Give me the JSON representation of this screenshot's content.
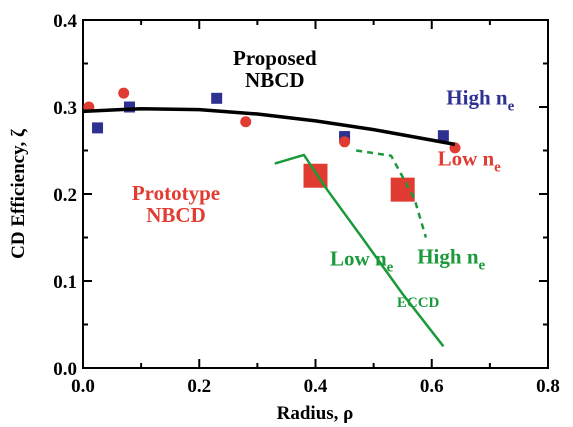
{
  "chart_data": {
    "type": "scatter",
    "xlabel": "Radius, ρ",
    "ylabel": "CD Efficiency, ζ",
    "xlim": [
      0.0,
      0.8
    ],
    "ylim": [
      0.0,
      0.4
    ],
    "xticks": [
      0.0,
      0.2,
      0.4,
      0.6,
      0.8
    ],
    "yticks": [
      0.0,
      0.1,
      0.2,
      0.3,
      0.4
    ],
    "xtick_labels": [
      "0.0",
      "0.2",
      "0.4",
      "0.6",
      "0.8"
    ],
    "ytick_labels": [
      "0.0",
      "0.1",
      "0.2",
      "0.3",
      "0.4"
    ],
    "grid": false,
    "legend": "none",
    "series": [
      {
        "key": "high_ne_points",
        "marker": "square",
        "color": "#2e3192",
        "x": [
          0.025,
          0.08,
          0.23,
          0.45,
          0.62
        ],
        "y": [
          0.276,
          0.3,
          0.31,
          0.266,
          0.267
        ]
      },
      {
        "key": "low_ne_points",
        "marker": "circle",
        "color": "#e03c31",
        "x": [
          0.01,
          0.07,
          0.28,
          0.45,
          0.64
        ],
        "y": [
          0.3,
          0.316,
          0.283,
          0.26,
          0.253
        ]
      },
      {
        "key": "proposed_nbcd_curve",
        "marker": "line",
        "color": "#000000",
        "x": [
          0.0,
          0.1,
          0.2,
          0.3,
          0.4,
          0.5,
          0.6,
          0.64
        ],
        "y": [
          0.295,
          0.298,
          0.297,
          0.292,
          0.284,
          0.274,
          0.262,
          0.257
        ]
      },
      {
        "key": "prototype_nbcd_points",
        "marker": "big-square",
        "color": "#e03c31",
        "x": [
          0.4,
          0.55
        ],
        "y": [
          0.221,
          0.205
        ]
      },
      {
        "key": "eccd_low_ne_curve",
        "marker": "line",
        "color": "#1a9a3a",
        "x": [
          0.33,
          0.38,
          0.42,
          0.48,
          0.55,
          0.62
        ],
        "y": [
          0.235,
          0.245,
          0.205,
          0.15,
          0.085,
          0.025
        ]
      },
      {
        "key": "eccd_high_ne_curve",
        "marker": "dashed-line",
        "color": "#1a9a3a",
        "x": [
          0.47,
          0.53,
          0.57,
          0.59
        ],
        "y": [
          0.25,
          0.244,
          0.195,
          0.15
        ]
      }
    ],
    "annotations": [
      {
        "key": "proposed",
        "lines": [
          "Proposed",
          "NBCD"
        ],
        "color": "#000000",
        "x": 0.33,
        "y": 0.348
      },
      {
        "key": "high_ne_right",
        "text": "High n",
        "sub": "e",
        "color": "#2e3192",
        "x": 0.625,
        "y": 0.303
      },
      {
        "key": "low_ne_right",
        "text": "Low n",
        "sub": "e",
        "color": "#e03c31",
        "x": 0.61,
        "y": 0.233
      },
      {
        "key": "prototype",
        "lines": [
          "Prototype",
          "NBCD"
        ],
        "color": "#e03c31",
        "x": 0.16,
        "y": 0.193
      },
      {
        "key": "high_ne_green",
        "text": "High n",
        "sub": "e",
        "color": "#1a9a3a",
        "x": 0.575,
        "y": 0.12
      },
      {
        "key": "low_ne_green",
        "text": "Low n",
        "sub": "e",
        "color": "#1a9a3a",
        "x": 0.425,
        "y": 0.118
      },
      {
        "key": "eccd",
        "text": "ECCD",
        "color": "#1a9a3a",
        "x": 0.54,
        "y": 0.07
      }
    ]
  }
}
